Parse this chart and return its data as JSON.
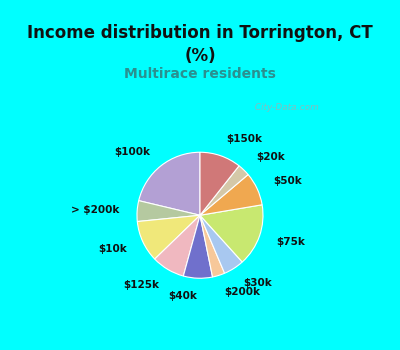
{
  "title": "Income distribution in Torrington, CT\n(%)",
  "subtitle": "Multirace residents",
  "labels": [
    "$100k",
    "> $200k",
    "$10k",
    "$125k",
    "$40k",
    "$200k",
    "$30k",
    "$75k",
    "$50k",
    "$20k",
    "$150k"
  ],
  "sizes": [
    20,
    5,
    10,
    8,
    7,
    3,
    5,
    15,
    8,
    3,
    10
  ],
  "colors": [
    "#b3a0d4",
    "#b5c9a0",
    "#f0e87a",
    "#f0b8c0",
    "#7070cc",
    "#f7c89a",
    "#a8c8f0",
    "#c8e870",
    "#f0a850",
    "#d4c8a8",
    "#d07878"
  ],
  "startangle": 90,
  "bg_cyan": "#00ffff",
  "bg_pie": "#dff2e8",
  "title_color": "#111111",
  "subtitle_color": "#2a9090",
  "watermark": "  City-Data.com",
  "watermark_color": "#aaaaaa",
  "label_fontsize": 7.5,
  "title_fontsize": 12,
  "subtitle_fontsize": 10
}
